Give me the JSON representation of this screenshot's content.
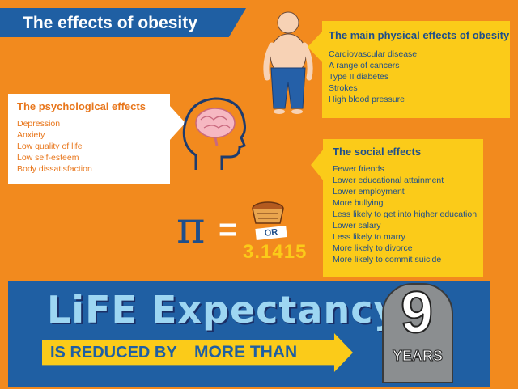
{
  "title": "The effects of obesity",
  "physical": {
    "heading": "The main physical effects of obesity",
    "items": [
      "Cardiovascular disease",
      "A range of cancers",
      "Type II diabetes",
      "Strokes",
      "High blood pressure"
    ]
  },
  "psychological": {
    "heading": "The psychological effects",
    "items": [
      "Depression",
      "Anxiety",
      "Low quality of life",
      "Low self-esteem",
      "Body dissatisfaction"
    ]
  },
  "social": {
    "heading": "The social effects",
    "items": [
      "Fewer friends",
      "Lower educational attainment",
      "Lower employment",
      "More bullying",
      "Less likely to get into higher education",
      "Lower salary",
      "Less likely to marry",
      "More likely to divorce",
      "More likely to commit suicide"
    ]
  },
  "pi": {
    "symbol": "π",
    "equals": "=",
    "or": "OR",
    "value": "3.1415"
  },
  "life": {
    "title": "LiFE Expectancy",
    "reduced": "IS REDUCED BY",
    "more_than": "MORE THAN",
    "years_number": "9",
    "years_label": "YEARS"
  },
  "colors": {
    "background": "#F28A1E",
    "blue": "#1F5FA3",
    "yellow": "#FBCB19",
    "light_blue": "#9DD6F2"
  },
  "icons": [
    "person-illustration",
    "head-brain-icon",
    "pie-icon",
    "tombstone-icon"
  ]
}
